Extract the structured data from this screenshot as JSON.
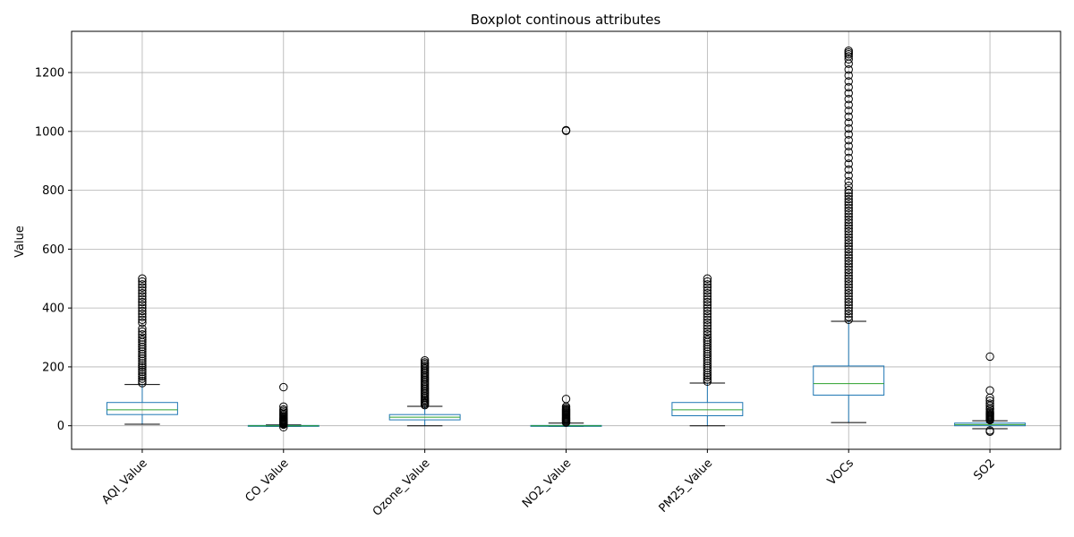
{
  "chart_data": {
    "type": "boxplot",
    "title": "Boxplot continous attributes",
    "xlabel": "",
    "ylabel": "Value",
    "ylim": [
      -80,
      1340
    ],
    "yticks": [
      0,
      200,
      400,
      600,
      800,
      1000,
      1200
    ],
    "grid": true,
    "colors": {
      "box": "#1f77b4",
      "median": "#2ca02c",
      "whisker": "#000000",
      "flier": "#000000",
      "grid": "#b0b0b0"
    },
    "categories": [
      "AQI_Value",
      "CO_Value",
      "Ozone_Value",
      "NO2_Value",
      "PM25_Value",
      "VOCs",
      "SO2"
    ],
    "boxes": [
      {
        "name": "AQI_Value",
        "whislo": 5,
        "q1": 38,
        "med": 54,
        "q3": 79,
        "whishi": 140,
        "fliers": [
          145,
          152,
          160,
          168,
          175,
          183,
          190,
          198,
          205,
          212,
          220,
          228,
          236,
          244,
          252,
          260,
          268,
          276,
          284,
          292,
          300,
          310,
          320,
          330,
          350,
          360,
          370,
          380,
          390,
          400,
          410,
          420,
          430,
          440,
          450,
          460,
          470,
          480,
          490,
          500
        ]
      },
      {
        "name": "CO_Value",
        "whislo": -2,
        "q1": -1,
        "med": 0,
        "q3": 1,
        "whishi": 3,
        "fliers": [
          -5,
          4,
          6,
          8,
          10,
          12,
          14,
          16,
          18,
          20,
          22,
          25,
          28,
          32,
          36,
          40,
          45,
          50,
          55,
          65,
          131
        ]
      },
      {
        "name": "Ozone_Value",
        "whislo": 0,
        "q1": 20,
        "med": 29,
        "q3": 38,
        "whishi": 66,
        "fliers": [
          70,
          74,
          78,
          82,
          86,
          90,
          95,
          100,
          105,
          110,
          115,
          120,
          125,
          130,
          135,
          140,
          145,
          150,
          155,
          160,
          165,
          170,
          175,
          180,
          185,
          190,
          195,
          200,
          205,
          210,
          215,
          222
        ]
      },
      {
        "name": "NO2_Value",
        "whislo": -2,
        "q1": -1,
        "med": 0,
        "q3": 1,
        "whishi": 9,
        "fliers": [
          11,
          14,
          17,
          20,
          23,
          26,
          29,
          32,
          35,
          38,
          41,
          44,
          47,
          50,
          53,
          56,
          60,
          65,
          91,
          1002,
          1004
        ]
      },
      {
        "name": "PM25_Value",
        "whislo": 0,
        "q1": 34,
        "med": 54,
        "q3": 79,
        "whishi": 145,
        "fliers": [
          150,
          157,
          165,
          172,
          180,
          188,
          196,
          204,
          212,
          220,
          228,
          236,
          244,
          252,
          260,
          268,
          276,
          284,
          292,
          300,
          310,
          320,
          330,
          340,
          350,
          360,
          370,
          380,
          390,
          400,
          410,
          420,
          430,
          440,
          450,
          460,
          470,
          480,
          490,
          500
        ]
      },
      {
        "name": "VOCs",
        "whislo": 11,
        "q1": 104,
        "med": 143,
        "q3": 203,
        "whishi": 355,
        "fliers": [
          360,
          370,
          380,
          390,
          400,
          410,
          420,
          430,
          440,
          450,
          460,
          470,
          480,
          490,
          500,
          510,
          520,
          530,
          540,
          550,
          560,
          570,
          580,
          590,
          600,
          610,
          620,
          630,
          640,
          650,
          660,
          670,
          680,
          690,
          700,
          710,
          720,
          730,
          740,
          750,
          760,
          770,
          780,
          790,
          800,
          815,
          830,
          850,
          870,
          890,
          910,
          930,
          950,
          970,
          990,
          1010,
          1030,
          1050,
          1070,
          1090,
          1110,
          1130,
          1150,
          1170,
          1190,
          1210,
          1230,
          1245,
          1255,
          1262,
          1268,
          1274
        ]
      },
      {
        "name": "SO2",
        "whislo": -10,
        "q1": 0,
        "med": 4,
        "q3": 9,
        "whishi": 17,
        "fliers": [
          -20,
          -16,
          19,
          22,
          25,
          28,
          31,
          34,
          37,
          40,
          44,
          48,
          55,
          60,
          68,
          75,
          85,
          95,
          120,
          235
        ]
      }
    ]
  }
}
